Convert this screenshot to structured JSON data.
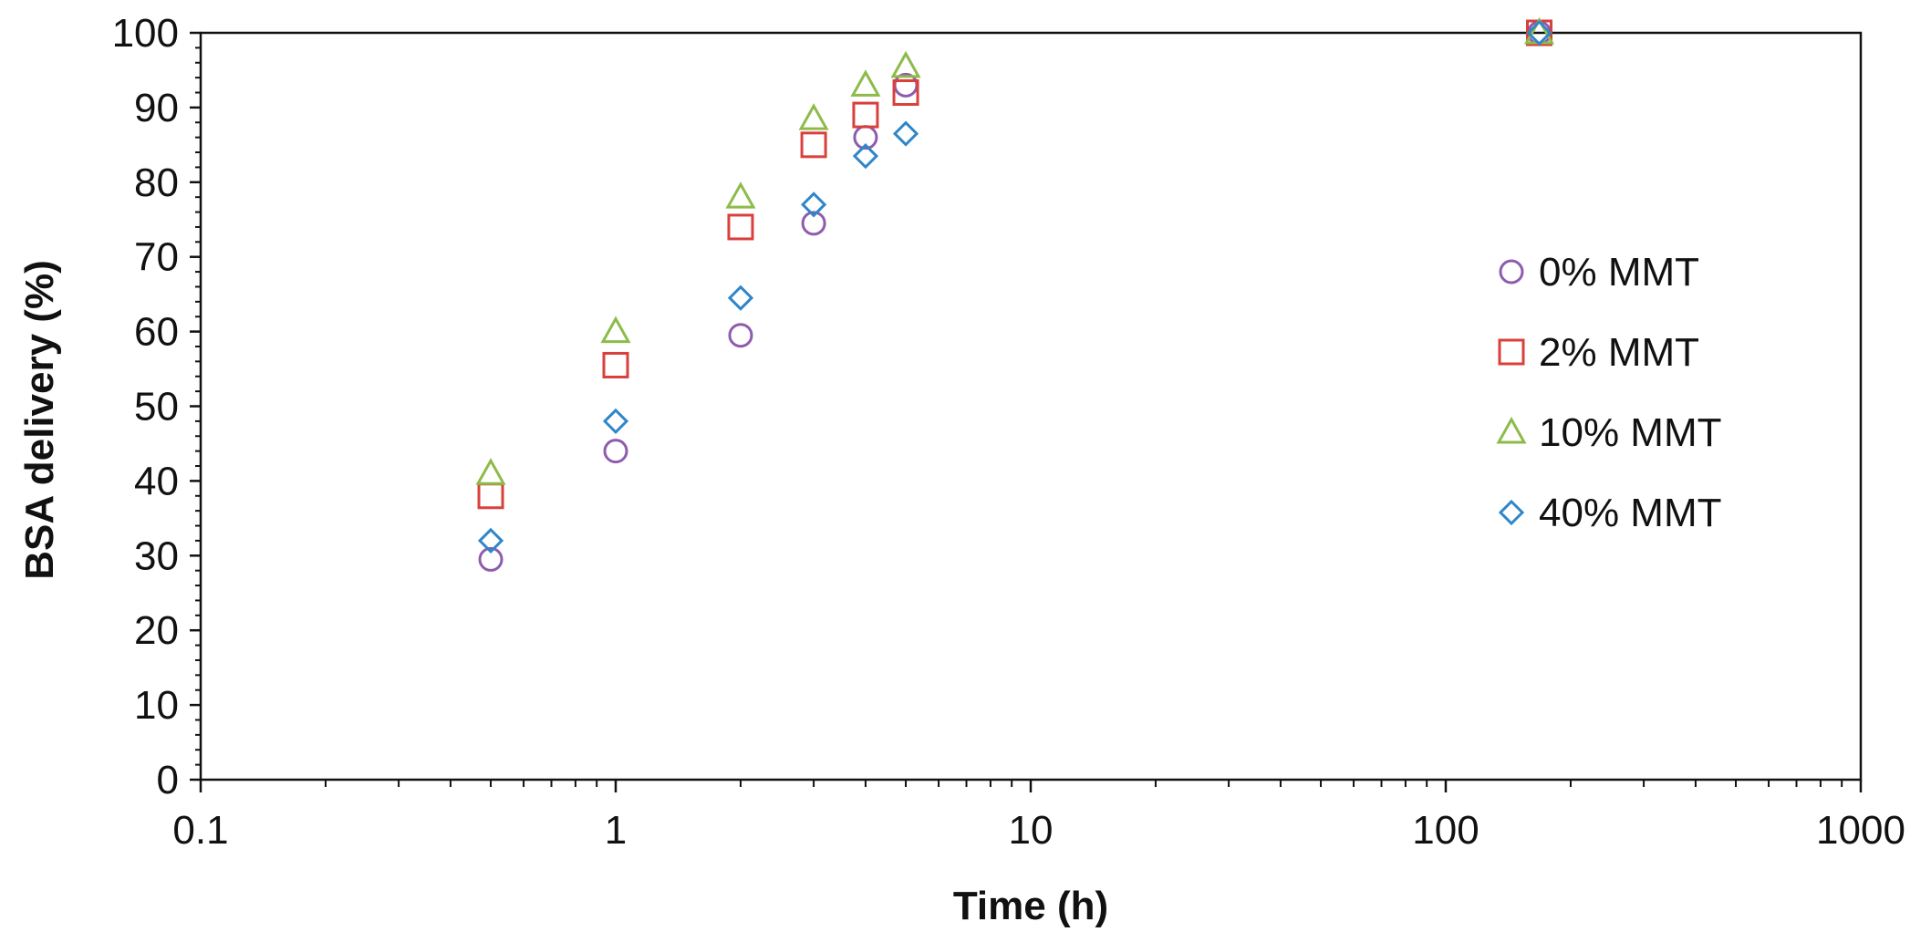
{
  "chart_data": {
    "type": "scatter",
    "title": "",
    "xlabel": "Time (h)",
    "ylabel": "BSA delivery  (%)",
    "xscale": "log",
    "xlim": [
      0.1,
      1000
    ],
    "ylim": [
      0,
      100
    ],
    "x_ticks": [
      0.1,
      1,
      10,
      100,
      1000
    ],
    "x_tick_labels": [
      "0.1",
      "1",
      "10",
      "100",
      "1000"
    ],
    "y_ticks": [
      0,
      10,
      20,
      30,
      40,
      50,
      60,
      70,
      80,
      90,
      100
    ],
    "y_tick_labels": [
      "0",
      "10",
      "20",
      "30",
      "40",
      "50",
      "60",
      "70",
      "80",
      "90",
      "100"
    ],
    "grid": false,
    "legend_position": "right",
    "series": [
      {
        "name": "0% MMT",
        "marker": "circle",
        "color": "#8e5cad",
        "x": [
          0.5,
          1,
          2,
          3,
          4,
          5,
          168
        ],
        "y": [
          29.5,
          44,
          59.5,
          74.5,
          86,
          93,
          100
        ]
      },
      {
        "name": "2% MMT",
        "marker": "square",
        "color": "#d9403b",
        "x": [
          0.5,
          1,
          2,
          3,
          4,
          5,
          168
        ],
        "y": [
          38,
          55.5,
          74,
          85,
          89,
          92,
          100
        ]
      },
      {
        "name": "10% MMT",
        "marker": "triangle",
        "color": "#8dbb4a",
        "x": [
          0.5,
          1,
          2,
          3,
          4,
          5,
          168
        ],
        "y": [
          41,
          60,
          78,
          88.5,
          93,
          95.5,
          100
        ]
      },
      {
        "name": "40% MMT",
        "marker": "diamond",
        "color": "#2f86c8",
        "x": [
          0.5,
          1,
          2,
          3,
          4,
          5,
          168
        ],
        "y": [
          32,
          48,
          64.5,
          77,
          83.5,
          86.5,
          100
        ]
      }
    ]
  }
}
